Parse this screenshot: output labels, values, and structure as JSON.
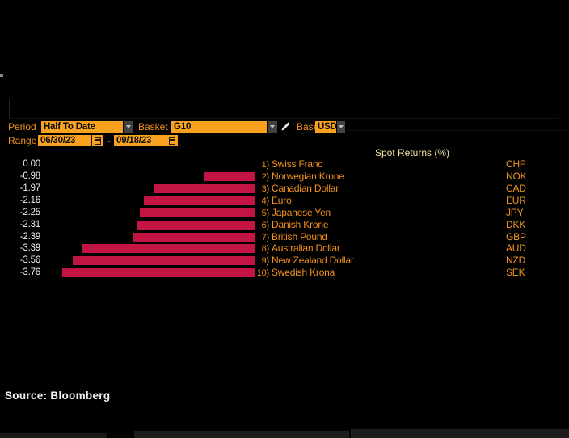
{
  "toolbar": {
    "period": {
      "label": "Period",
      "value": "Half To Date"
    },
    "basket": {
      "label": "Basket",
      "value": "G10"
    },
    "base": {
      "label": "Base",
      "value": "USD"
    },
    "range": {
      "label": "Range",
      "start": "06/30/23",
      "separator": "-",
      "end": "09/18/23"
    },
    "edit_icon": "pencil-icon",
    "dropdown_icon": "chevron-down-icon",
    "calendar_icon": "calendar-icon"
  },
  "chart_data": {
    "type": "bar",
    "orientation": "horizontal",
    "title": "Spot Returns (%)",
    "value_unit": "percent",
    "xlim": [
      -4,
      0
    ],
    "grid": false,
    "legend": false,
    "bar_color": "#C21543",
    "rows": [
      {
        "rank": "1)",
        "name": "Swiss Franc",
        "code": "CHF",
        "value": 0.0,
        "label": "0.00"
      },
      {
        "rank": "2)",
        "name": "Norwegian Krone",
        "code": "NOK",
        "value": -0.98,
        "label": "-0.98"
      },
      {
        "rank": "3)",
        "name": "Canadian Dollar",
        "code": "CAD",
        "value": -1.97,
        "label": "-1.97"
      },
      {
        "rank": "4)",
        "name": "Euro",
        "code": "EUR",
        "value": -2.16,
        "label": "-2.16"
      },
      {
        "rank": "5)",
        "name": "Japanese Yen",
        "code": "JPY",
        "value": -2.25,
        "label": "-2.25"
      },
      {
        "rank": "6)",
        "name": "Danish Krone",
        "code": "DKK",
        "value": -2.31,
        "label": "-2.31"
      },
      {
        "rank": "7)",
        "name": "British Pound",
        "code": "GBP",
        "value": -2.39,
        "label": "-2.39"
      },
      {
        "rank": "8)",
        "name": "Australian Dollar",
        "code": "AUD",
        "value": -3.39,
        "label": "-3.39"
      },
      {
        "rank": "9)",
        "name": "New Zealand Dollar",
        "code": "NZD",
        "value": -3.56,
        "label": "-3.56"
      },
      {
        "rank": "10)",
        "name": "Swedish Krona",
        "code": "SEK",
        "value": -3.76,
        "label": "-3.76"
      }
    ]
  },
  "footer": {
    "source": "Source: Bloomberg"
  },
  "colors": {
    "accent_orange": "#F9A21F",
    "orange_text": "#F2921D",
    "bar_red": "#C21543",
    "title_yellow": "#F2E5A0",
    "value_text": "#EFEFEF"
  }
}
